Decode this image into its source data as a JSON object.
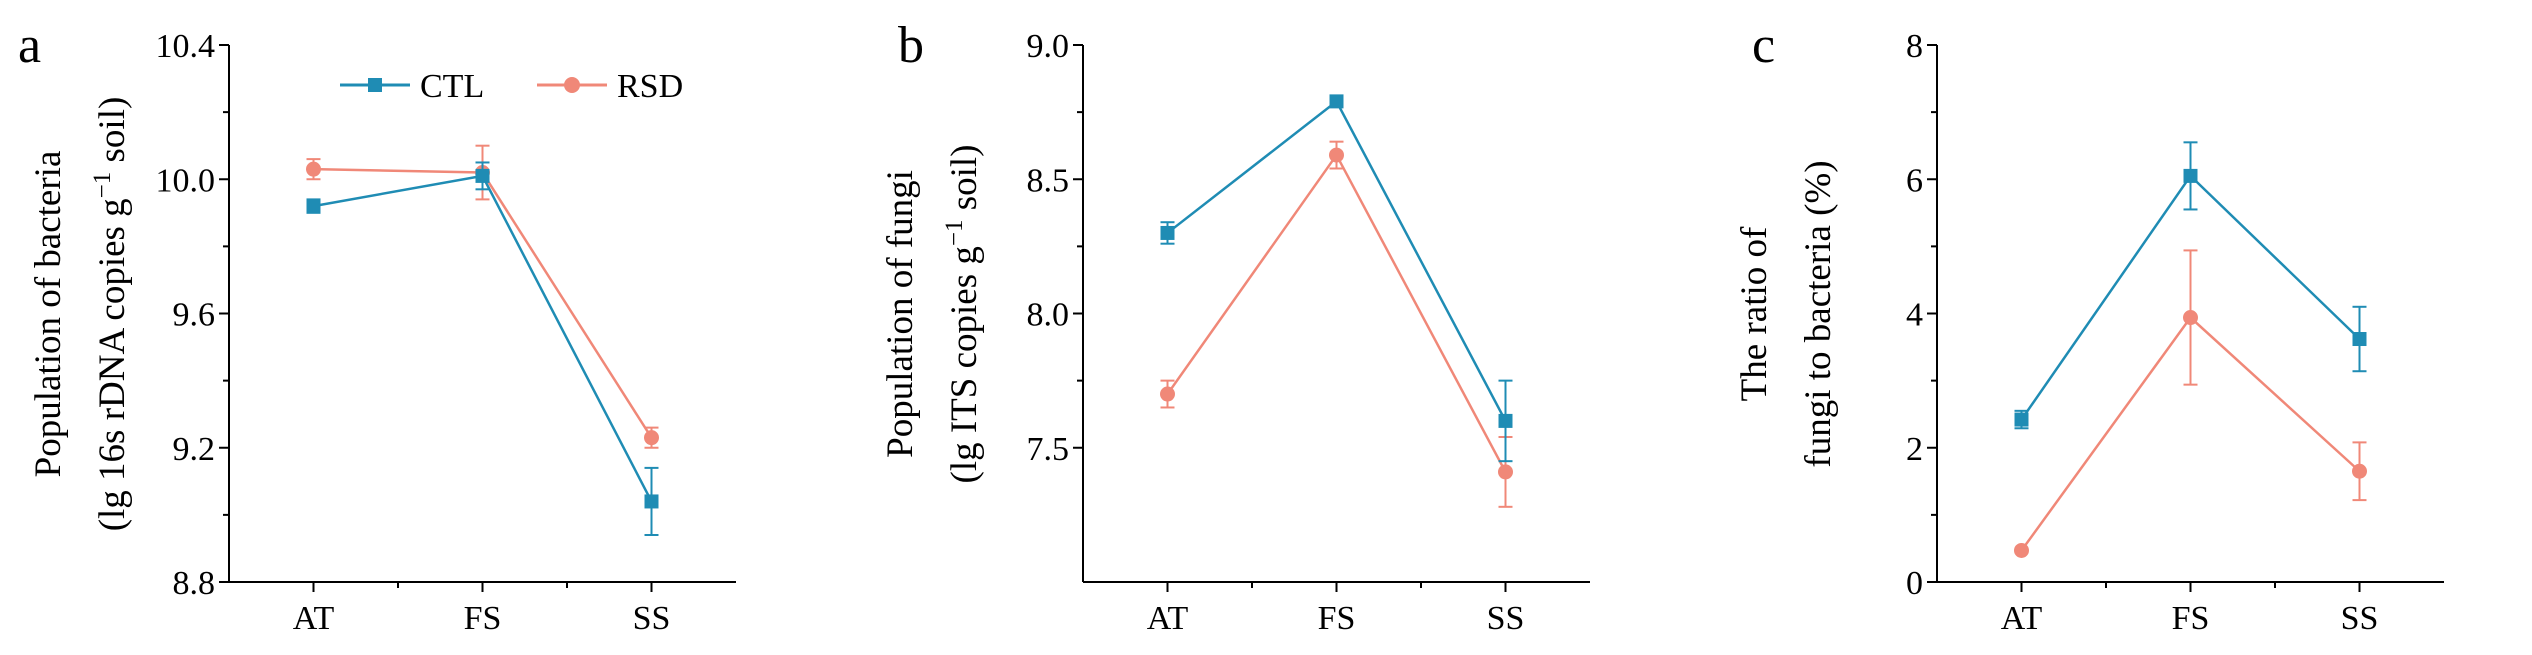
{
  "colors": {
    "ctl": "#1f8cb4",
    "rsd": "#f08878",
    "axis": "#000000"
  },
  "legend": {
    "ctl_label": "CTL",
    "rsd_label": "RSD"
  },
  "chart_data": [
    {
      "panel": "a",
      "type": "line",
      "categories": [
        "AT",
        "FS",
        "SS"
      ],
      "ylabel_line1": "Population of bacteria",
      "ylabel_line2": "(lg 16s rDNA copies g",
      "ylabel_sup": "−1",
      "ylabel_tail": " soil)",
      "ylim": [
        8.8,
        10.4
      ],
      "yticks": [
        8.8,
        9.2,
        9.6,
        10.0,
        10.4
      ],
      "tick_labels": [
        "8.8",
        "9.2",
        "9.6",
        "10.0",
        "10.4"
      ],
      "series": [
        {
          "name": "CTL",
          "marker": "square",
          "values": [
            9.92,
            10.01,
            9.04
          ],
          "errors": [
            0.02,
            0.04,
            0.1
          ]
        },
        {
          "name": "RSD",
          "marker": "circle",
          "values": [
            10.03,
            10.02,
            9.23
          ],
          "errors": [
            0.03,
            0.08,
            0.03
          ]
        }
      ]
    },
    {
      "panel": "b",
      "type": "line",
      "categories": [
        "AT",
        "FS",
        "SS"
      ],
      "ylabel_line1": "Population of fungi",
      "ylabel_line2": "(lg ITS copies g",
      "ylabel_sup": "−1",
      "ylabel_tail": " soil)",
      "ylim": [
        7.0,
        9.0
      ],
      "yticks": [
        7.5,
        8.0,
        8.5,
        9.0
      ],
      "tick_labels": [
        "7.5",
        "8.0",
        "8.5",
        "9.0"
      ],
      "series": [
        {
          "name": "CTL",
          "marker": "square",
          "values": [
            8.3,
            8.79,
            7.6
          ],
          "errors": [
            0.04,
            0.01,
            0.15
          ]
        },
        {
          "name": "RSD",
          "marker": "circle",
          "values": [
            7.7,
            8.59,
            7.41
          ],
          "errors": [
            0.05,
            0.05,
            0.13
          ]
        }
      ]
    },
    {
      "panel": "c",
      "type": "line",
      "categories": [
        "AT",
        "FS",
        "SS"
      ],
      "ylabel_line1": "The ratio of",
      "ylabel_line2": "fungi to bacteria (%)",
      "ylabel_sup": "",
      "ylabel_tail": "",
      "ylim": [
        0,
        8
      ],
      "yticks": [
        0,
        2,
        4,
        6,
        8
      ],
      "tick_labels": [
        "0",
        "2",
        "4",
        "6",
        "8"
      ],
      "series": [
        {
          "name": "CTL",
          "marker": "square",
          "values": [
            2.42,
            6.05,
            3.62
          ],
          "errors": [
            0.13,
            0.5,
            0.48
          ]
        },
        {
          "name": "RSD",
          "marker": "circle",
          "values": [
            0.47,
            3.94,
            1.65
          ],
          "errors": [
            0.0,
            1.0,
            0.43
          ]
        }
      ]
    }
  ]
}
